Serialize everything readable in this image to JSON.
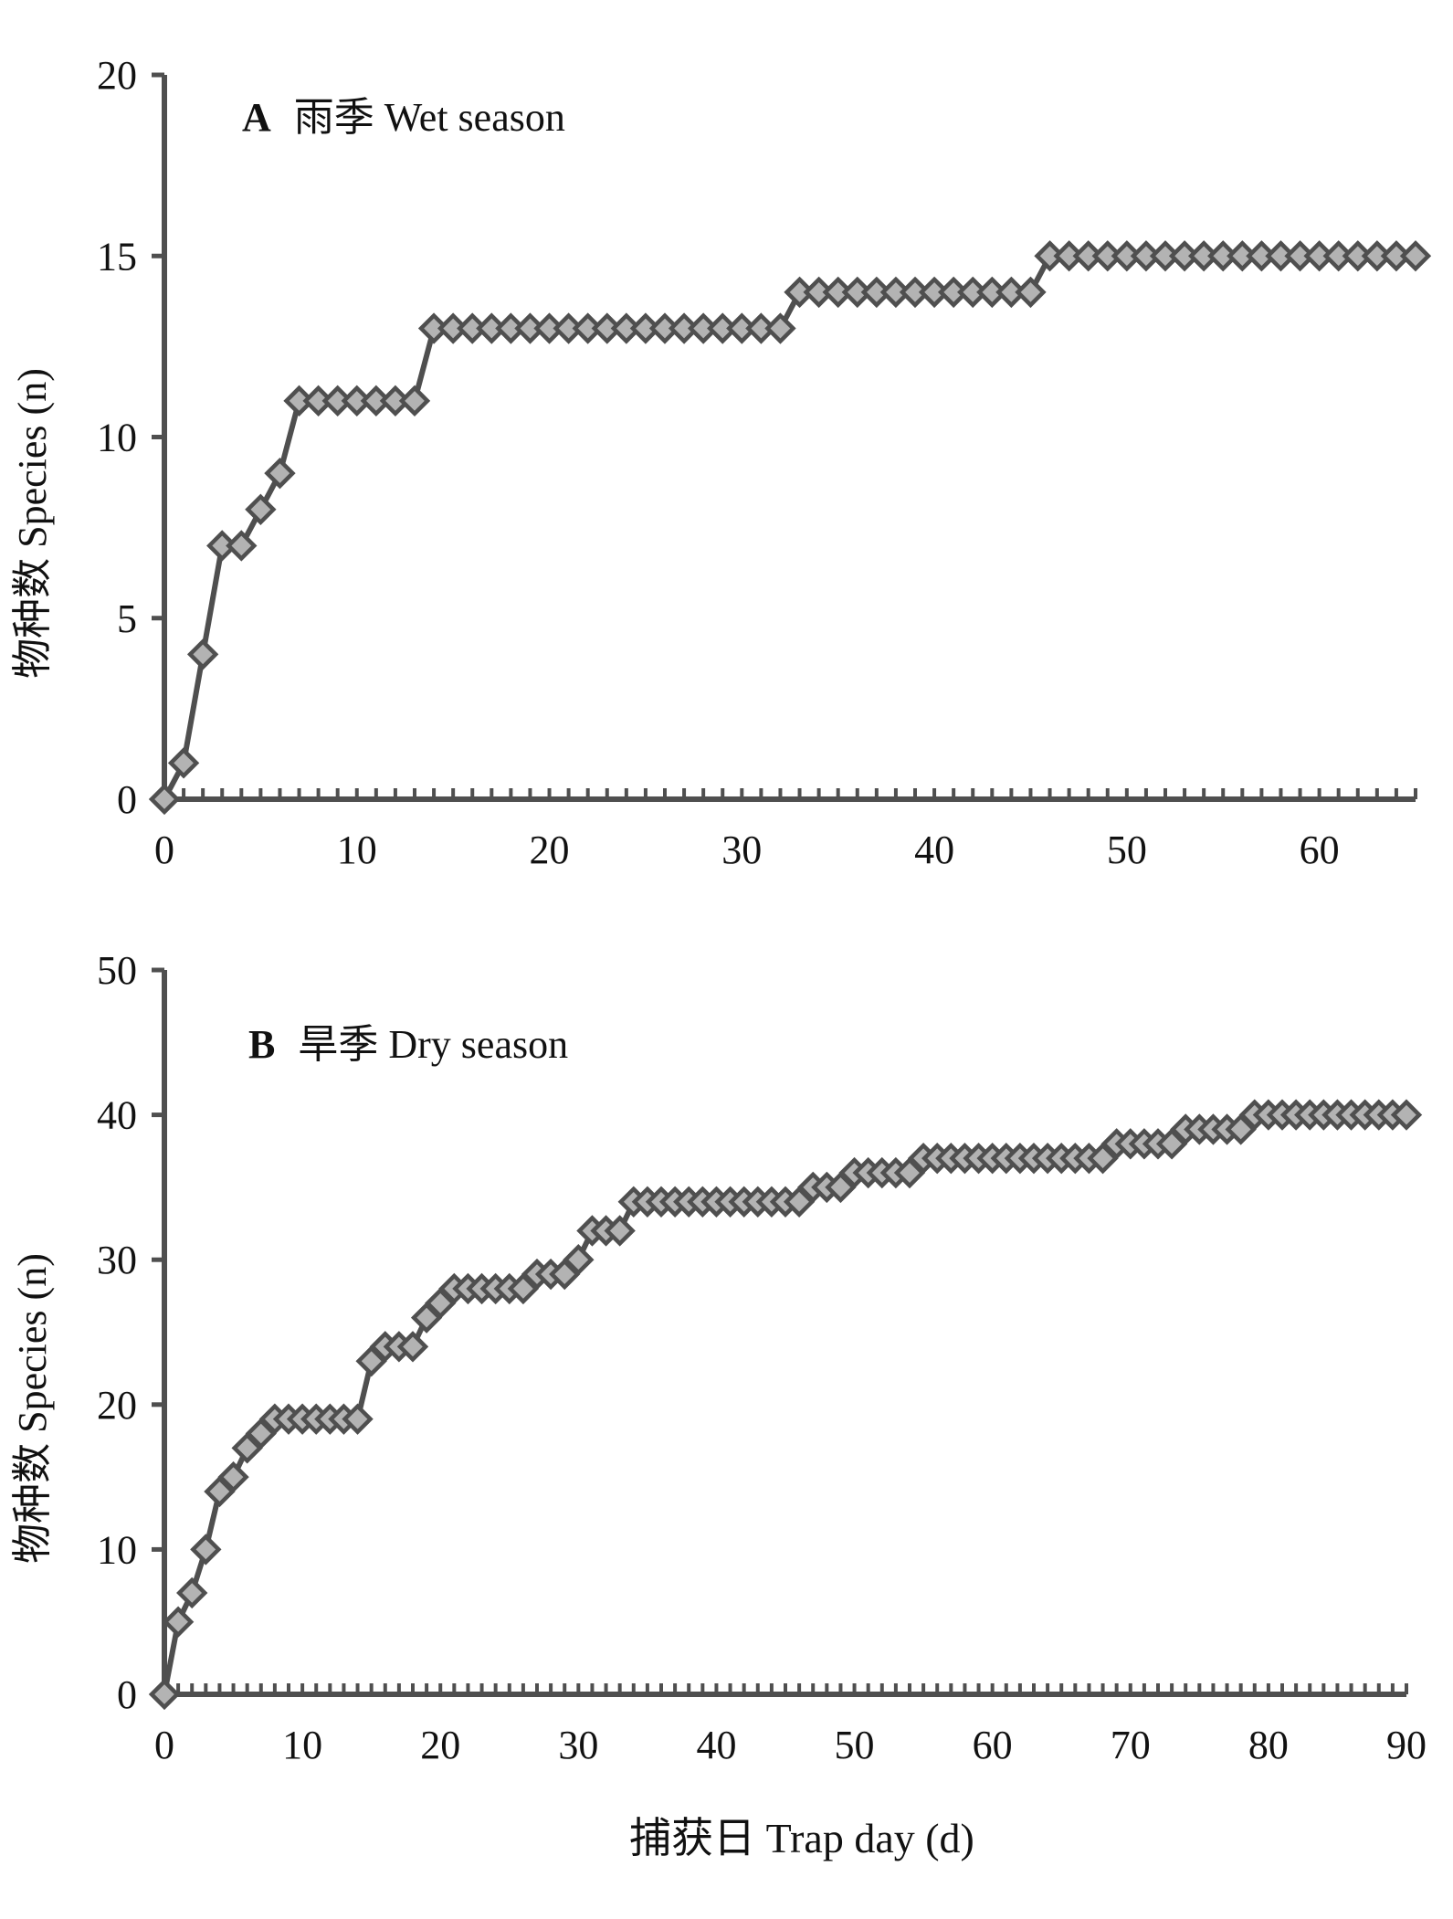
{
  "x_axis_title": "捕获日 Trap day (d)",
  "chart_data": [
    {
      "type": "line",
      "panel_letter": "A",
      "title": "雨季 Wet season",
      "ylabel": "物种数 Species (n)",
      "xlabel": "",
      "xlim": [
        0,
        65
      ],
      "ylim": [
        0,
        20
      ],
      "x_ticks": [
        0,
        10,
        20,
        30,
        40,
        50,
        60
      ],
      "y_ticks": [
        0,
        5,
        10,
        15,
        20
      ],
      "grid": false,
      "legend": "none",
      "marker": "diamond",
      "colors": {
        "line": "#4f4f4f",
        "marker_fill": "#b3b3b3",
        "marker_edge": "#4f4f4f",
        "axis": "#4f4f4f"
      },
      "series": [
        {
          "x_start": 0,
          "x_step": 1,
          "values": [
            0,
            1,
            4,
            7,
            7,
            8,
            9,
            11,
            11,
            11,
            11,
            11,
            11,
            11,
            13,
            13,
            13,
            13,
            13,
            13,
            13,
            13,
            13,
            13,
            13,
            13,
            13,
            13,
            13,
            13,
            13,
            13,
            13,
            14,
            14,
            14,
            14,
            14,
            14,
            14,
            14,
            14,
            14,
            14,
            14,
            14,
            15,
            15,
            15,
            15,
            15,
            15,
            15,
            15,
            15,
            15,
            15,
            15,
            15,
            15,
            15,
            15,
            15,
            15,
            15,
            15
          ]
        }
      ]
    },
    {
      "type": "line",
      "panel_letter": "B",
      "title": "旱季 Dry season",
      "ylabel": "物种数 Species (n)",
      "xlabel": "捕获日 Trap day (d)",
      "xlim": [
        0,
        90
      ],
      "ylim": [
        0,
        50
      ],
      "x_ticks": [
        0,
        10,
        20,
        30,
        40,
        50,
        60,
        70,
        80,
        90
      ],
      "y_ticks": [
        0,
        10,
        20,
        30,
        40,
        50
      ],
      "grid": false,
      "legend": "none",
      "marker": "diamond",
      "colors": {
        "line": "#4f4f4f",
        "marker_fill": "#b3b3b3",
        "marker_edge": "#4f4f4f",
        "axis": "#4f4f4f"
      },
      "series": [
        {
          "x_start": 0,
          "x_step": 1,
          "values": [
            0,
            5,
            7,
            10,
            14,
            15,
            17,
            18,
            19,
            19,
            19,
            19,
            19,
            19,
            19,
            23,
            24,
            24,
            24,
            26,
            27,
            28,
            28,
            28,
            28,
            28,
            28,
            29,
            29,
            29,
            30,
            32,
            32,
            32,
            34,
            34,
            34,
            34,
            34,
            34,
            34,
            34,
            34,
            34,
            34,
            34,
            34,
            35,
            35,
            35,
            36,
            36,
            36,
            36,
            36,
            37,
            37,
            37,
            37,
            37,
            37,
            37,
            37,
            37,
            37,
            37,
            37,
            37,
            37,
            38,
            38,
            38,
            38,
            38,
            39,
            39,
            39,
            39,
            39,
            40,
            40,
            40,
            40,
            40,
            40,
            40,
            40,
            40,
            40,
            40,
            40
          ]
        }
      ]
    }
  ]
}
